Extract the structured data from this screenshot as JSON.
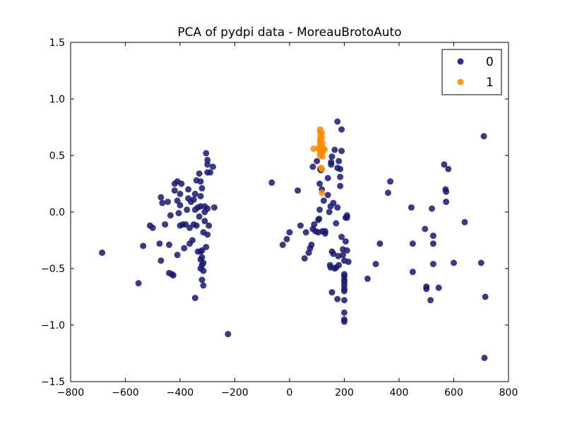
{
  "chart_data": {
    "type": "scatter",
    "title": "PCA of pydpi data - MoreauBrotoAuto",
    "xlabel": "",
    "ylabel": "",
    "xlim": [
      -800,
      800
    ],
    "ylim": [
      -1.5,
      1.5
    ],
    "xticks": [
      -800,
      -600,
      -400,
      -200,
      0,
      200,
      400,
      600,
      800
    ],
    "xtick_labels": [
      "−800",
      "−600",
      "−400",
      "−200",
      "0",
      "200",
      "400",
      "600",
      "800"
    ],
    "yticks": [
      1.5,
      1.0,
      0.5,
      0.0,
      -0.5,
      -1.0,
      -1.5
    ],
    "ytick_labels": [
      "1.5",
      "1.0",
      "0.5",
      "0.0",
      "−0.5",
      "−1.0",
      "−1.5"
    ],
    "grid": false,
    "legend_position": "top-right",
    "series": [
      {
        "name": "0",
        "color": "#191970",
        "points": [
          [
            -685,
            -0.36
          ],
          [
            -552,
            -0.63
          ],
          [
            -535,
            -0.3
          ],
          [
            -510,
            -0.12
          ],
          [
            -500,
            -0.14
          ],
          [
            -475,
            -0.28
          ],
          [
            -470,
            -0.43
          ],
          [
            -470,
            0.13
          ],
          [
            -465,
            0.08
          ],
          [
            -455,
            -0.11
          ],
          [
            -445,
            0.09
          ],
          [
            -440,
            -0.29
          ],
          [
            -440,
            -0.54
          ],
          [
            -430,
            -0.55
          ],
          [
            -425,
            -0.56
          ],
          [
            -435,
            -0.03
          ],
          [
            -420,
            0.19
          ],
          [
            -420,
            0.25
          ],
          [
            -410,
            0.27
          ],
          [
            -400,
            0.16
          ],
          [
            -410,
            0.1
          ],
          [
            -405,
            -0.01
          ],
          [
            -410,
            -0.38
          ],
          [
            -400,
            -0.12
          ],
          [
            -390,
            -0.11
          ],
          [
            -400,
            0.06
          ],
          [
            -395,
            0.25
          ],
          [
            -385,
            -0.32
          ],
          [
            -380,
            -0.11
          ],
          [
            -375,
            0.02
          ],
          [
            -370,
            0.2
          ],
          [
            -370,
            0.12
          ],
          [
            -360,
            0.09
          ],
          [
            -365,
            -0.14
          ],
          [
            -365,
            -0.28
          ],
          [
            -355,
            -0.25
          ],
          [
            -350,
            -0.11
          ],
          [
            -345,
            0.16
          ],
          [
            -340,
            0.28
          ],
          [
            -350,
            0.11
          ],
          [
            -345,
            0.02
          ],
          [
            -340,
            -0.12
          ],
          [
            -335,
            0.04
          ],
          [
            -330,
            -0.04
          ],
          [
            -330,
            0.34
          ],
          [
            -325,
            0.05
          ],
          [
            -325,
            0.27
          ],
          [
            -325,
            0.14
          ],
          [
            -320,
            0.21
          ],
          [
            -325,
            -0.35
          ],
          [
            -320,
            -0.47
          ],
          [
            -325,
            -0.5
          ],
          [
            -315,
            -0.52
          ],
          [
            -320,
            -0.6
          ],
          [
            -320,
            -0.4
          ],
          [
            -325,
            -0.42
          ],
          [
            -315,
            -0.65
          ],
          [
            -315,
            -0.18
          ],
          [
            -315,
            -0.45
          ],
          [
            -310,
            0.05
          ],
          [
            -310,
            0.0
          ],
          [
            -305,
            -0.31
          ],
          [
            -305,
            0.52
          ],
          [
            -300,
            0.46
          ],
          [
            -300,
            0.42
          ],
          [
            -300,
            0.35
          ],
          [
            -300,
            0.03
          ],
          [
            -295,
            -0.12
          ],
          [
            -290,
            0.35
          ],
          [
            -280,
            0.4
          ],
          [
            -275,
            0.04
          ],
          [
            -310,
            -0.08
          ],
          [
            -345,
            -0.76
          ],
          [
            -300,
            -0.2
          ],
          [
            -335,
            -0.35
          ],
          [
            -320,
            -0.34
          ],
          [
            -225,
            -1.08
          ],
          [
            -65,
            0.26
          ],
          [
            -25,
            -0.29
          ],
          [
            -10,
            -0.24
          ],
          [
            0,
            -0.18
          ],
          [
            30,
            0.19
          ],
          [
            40,
            -0.12
          ],
          [
            55,
            -0.41
          ],
          [
            60,
            -0.18
          ],
          [
            70,
            -0.36
          ],
          [
            75,
            -0.32
          ],
          [
            80,
            -0.29
          ],
          [
            85,
            -0.15
          ],
          [
            85,
            0.4
          ],
          [
            90,
            -0.11
          ],
          [
            95,
            -0.17
          ],
          [
            100,
            0.45
          ],
          [
            105,
            -0.07
          ],
          [
            105,
            -0.18
          ],
          [
            108,
            -0.06
          ],
          [
            110,
            0.02
          ],
          [
            110,
            0.25
          ],
          [
            112,
            0.38
          ],
          [
            115,
            0.37
          ],
          [
            118,
            0.2
          ],
          [
            120,
            -0.17
          ],
          [
            125,
            0.1
          ],
          [
            130,
            -0.19
          ],
          [
            130,
            -0.17
          ],
          [
            140,
            0.15
          ],
          [
            140,
            0.3
          ],
          [
            145,
            0.0
          ],
          [
            148,
            -0.47
          ],
          [
            150,
            -0.49
          ],
          [
            150,
            0.05
          ],
          [
            152,
            0.42
          ],
          [
            152,
            0.44
          ],
          [
            155,
            0.49
          ],
          [
            155,
            -0.35
          ],
          [
            155,
            -0.71
          ],
          [
            160,
            -0.37
          ],
          [
            160,
            0.08
          ],
          [
            165,
            0.55
          ],
          [
            165,
            -0.5
          ],
          [
            170,
            -0.49
          ],
          [
            170,
            -0.1
          ],
          [
            175,
            0.39
          ],
          [
            175,
            0.8
          ],
          [
            175,
            0.04
          ],
          [
            175,
            -0.77
          ],
          [
            178,
            -0.39
          ],
          [
            180,
            -0.47
          ],
          [
            180,
            0.45
          ],
          [
            185,
            0.31
          ],
          [
            185,
            0.38
          ],
          [
            185,
            0.23
          ],
          [
            190,
            0.73
          ],
          [
            190,
            0.54
          ],
          [
            190,
            -0.22
          ],
          [
            195,
            -0.38
          ],
          [
            195,
            -0.33
          ],
          [
            200,
            -0.43
          ],
          [
            200,
            -0.55
          ],
          [
            200,
            -0.6
          ],
          [
            200,
            -0.62
          ],
          [
            200,
            -0.65
          ],
          [
            200,
            -0.68
          ],
          [
            200,
            -0.7
          ],
          [
            200,
            -0.78
          ],
          [
            200,
            -0.89
          ],
          [
            200,
            -0.95
          ],
          [
            200,
            -0.97
          ],
          [
            200,
            -0.57
          ],
          [
            205,
            -0.05
          ],
          [
            205,
            -0.26
          ],
          [
            210,
            -0.05
          ],
          [
            210,
            -0.34
          ],
          [
            210,
            -0.03
          ],
          [
            215,
            -0.44
          ],
          [
            285,
            -0.59
          ],
          [
            315,
            -0.46
          ],
          [
            330,
            -0.28
          ],
          [
            360,
            0.17
          ],
          [
            368,
            0.27
          ],
          [
            445,
            0.04
          ],
          [
            450,
            -0.28
          ],
          [
            450,
            -0.53
          ],
          [
            495,
            -0.15
          ],
          [
            500,
            -0.66
          ],
          [
            500,
            -0.68
          ],
          [
            515,
            -0.78
          ],
          [
            520,
            0.03
          ],
          [
            525,
            -0.21
          ],
          [
            525,
            -0.28
          ],
          [
            525,
            -0.46
          ],
          [
            545,
            -0.67
          ],
          [
            565,
            0.42
          ],
          [
            570,
            0.2
          ],
          [
            572,
            0.18
          ],
          [
            572,
            0.09
          ],
          [
            580,
            0.38
          ],
          [
            600,
            -0.45
          ],
          [
            640,
            -0.09
          ],
          [
            700,
            -0.45
          ],
          [
            710,
            0.67
          ],
          [
            715,
            -0.75
          ],
          [
            712,
            -1.29
          ]
        ]
      },
      {
        "name": "1",
        "color": "#ff8c00",
        "points": [
          [
            88,
            0.56
          ],
          [
            105,
            0.56
          ],
          [
            112,
            0.73
          ],
          [
            112,
            0.71
          ],
          [
            113,
            0.68
          ],
          [
            113,
            0.65
          ],
          [
            112,
            0.63
          ],
          [
            112,
            0.6
          ],
          [
            112,
            0.58
          ],
          [
            112,
            0.55
          ],
          [
            112,
            0.52
          ],
          [
            112,
            0.5
          ],
          [
            118,
            0.7
          ],
          [
            118,
            0.66
          ],
          [
            120,
            0.61
          ],
          [
            120,
            0.57
          ],
          [
            120,
            0.53
          ],
          [
            120,
            0.49
          ],
          [
            125,
            0.56
          ],
          [
            128,
            0.55
          ],
          [
            115,
            0.39
          ],
          [
            118,
            0.38
          ],
          [
            118,
            0.17
          ]
        ]
      }
    ]
  }
}
